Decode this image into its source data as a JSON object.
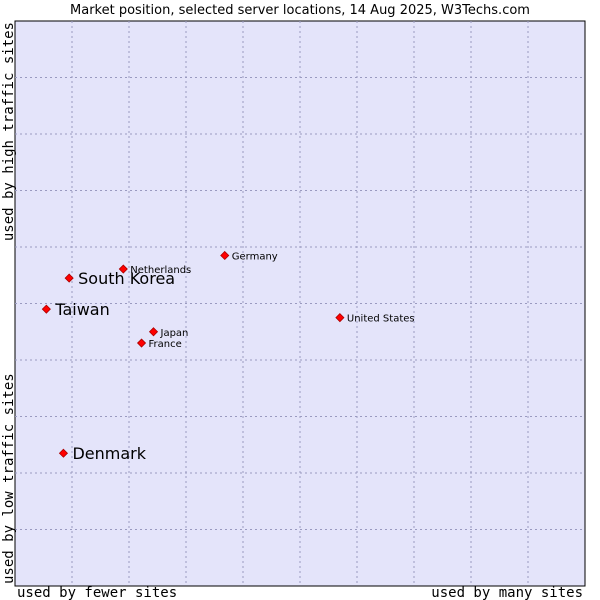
{
  "chart_data": {
    "type": "scatter",
    "title": "Market position, selected server locations, 14 Aug 2025, W3Techs.com",
    "xlabel_left": "used by fewer sites",
    "xlabel_right": "used by many sites",
    "ylabel_top": "used by high traffic sites",
    "ylabel_bottom": "used by low traffic sites",
    "xlim": [
      0,
      100
    ],
    "ylim": [
      0,
      100
    ],
    "grid": true,
    "colors": {
      "plot_background": "#e4e4fa",
      "grid": "#9a9ac0",
      "marker": "#ff0000",
      "marker_edge": "#aa0000"
    },
    "points": [
      {
        "name": "United States",
        "x": 57.0,
        "y": 47.5,
        "emphasis": "normal"
      },
      {
        "name": "Germany",
        "x": 36.8,
        "y": 58.5,
        "emphasis": "normal"
      },
      {
        "name": "Netherlands",
        "x": 19.0,
        "y": 56.1,
        "emphasis": "normal"
      },
      {
        "name": "Japan",
        "x": 24.3,
        "y": 45.0,
        "emphasis": "normal"
      },
      {
        "name": "France",
        "x": 22.2,
        "y": 43.0,
        "emphasis": "normal"
      },
      {
        "name": "South Korea",
        "x": 9.5,
        "y": 54.5,
        "emphasis": "highlight"
      },
      {
        "name": "Taiwan",
        "x": 5.5,
        "y": 49.0,
        "emphasis": "highlight"
      },
      {
        "name": "Denmark",
        "x": 8.5,
        "y": 23.5,
        "emphasis": "highlight"
      }
    ]
  }
}
